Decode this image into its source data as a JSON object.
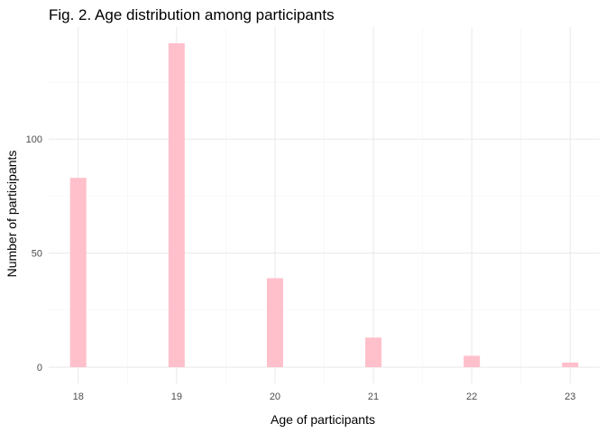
{
  "chart_data": {
    "type": "bar",
    "title": "Fig. 2. Age distribution among participants",
    "xlabel": "Age of participants",
    "ylabel": "Number of participants",
    "categories": [
      18,
      19,
      20,
      21,
      22,
      23
    ],
    "values": [
      83,
      142,
      39,
      13,
      5,
      2
    ],
    "x_ticks": [
      "18",
      "19",
      "20",
      "21",
      "22",
      "23"
    ],
    "y_ticks": [
      0,
      50,
      100
    ],
    "y_minor_ticks": [
      25,
      75,
      125
    ],
    "xlim": [
      17.7,
      23.3
    ],
    "ylim": [
      -7.1,
      149.1
    ],
    "bar_color": "#ffc0cb",
    "grid": true
  }
}
